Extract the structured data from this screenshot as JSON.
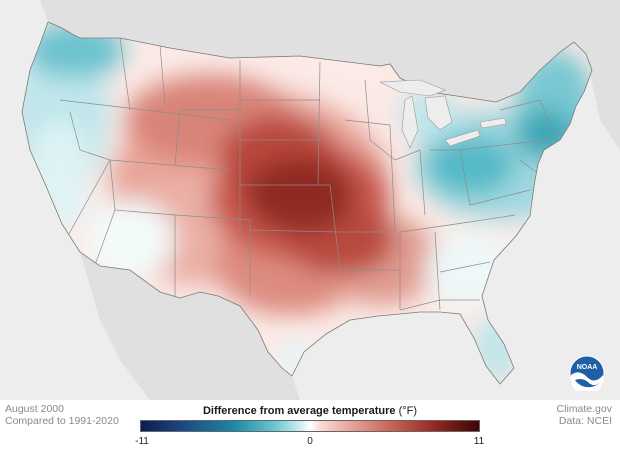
{
  "map": {
    "date": "August 2000",
    "baseline": "Compared to 1991-2020",
    "legend": {
      "title": "Difference from average temperature",
      "unit": "(°F)",
      "min_label": "-11",
      "mid_label": "0",
      "max_label": "11",
      "min": -11,
      "max": 11,
      "colors": {
        "cold": "#0d1b4f",
        "neutral": "#ffffff",
        "hot": "#3d0505"
      }
    },
    "credit": "Climate.gov",
    "source": "Data: NCEI",
    "logo_text": "NOAA"
  }
}
